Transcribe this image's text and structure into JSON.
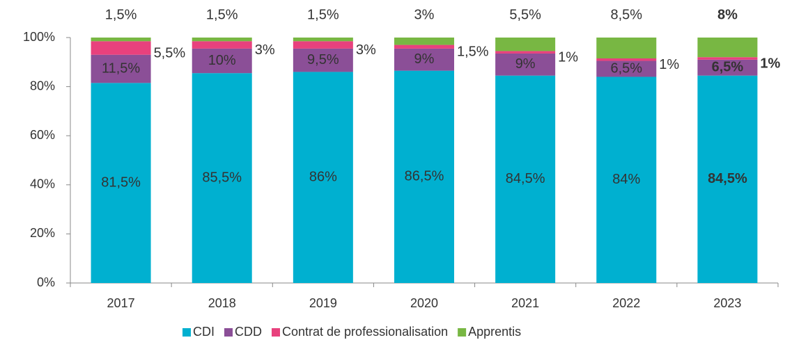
{
  "chart_data": {
    "type": "stacked_bar",
    "categories": [
      "2017",
      "2018",
      "2019",
      "2020",
      "2021",
      "2022",
      "2023"
    ],
    "series": [
      {
        "name": "CDI",
        "color": "#00b0d0",
        "label_position": "inside",
        "label_color": "#ffffff",
        "values": [
          81.5,
          85.5,
          86,
          86.5,
          84.5,
          84,
          84.5
        ],
        "value_labels": [
          "81,5%",
          "85,5%",
          "86%",
          "86,5%",
          "84,5%",
          "84%",
          "84,5%"
        ]
      },
      {
        "name": "CDD",
        "color": "#8b4f97",
        "label_position": "inside",
        "label_color": "#ffffff",
        "values": [
          11.5,
          10,
          9.5,
          9,
          9,
          6.5,
          6.5
        ],
        "value_labels": [
          "11,5%",
          "10%",
          "9,5%",
          "9%",
          "9%",
          "6,5%",
          "6,5%"
        ]
      },
      {
        "name": "Contrat de professionalisation",
        "color": "#e8417d",
        "label_position": "right",
        "label_color": "#e8417d",
        "values": [
          5.5,
          3,
          3,
          1.5,
          1,
          1,
          1
        ],
        "value_labels": [
          "5,5%",
          "3%",
          "3%",
          "1,5%",
          "1%",
          "1%",
          "1%"
        ]
      },
      {
        "name": "Apprentis",
        "color": "#78b743",
        "label_position": "top",
        "label_color": "#78b743",
        "values": [
          1.5,
          1.5,
          1.5,
          3,
          5.5,
          8.5,
          8
        ],
        "value_labels": [
          "1,5%",
          "1,5%",
          "1,5%",
          "3%",
          "5,5%",
          "8,5%",
          "8%"
        ]
      }
    ],
    "ylim": [
      0,
      100
    ],
    "yticks": [
      {
        "value": 0,
        "label": "0%"
      },
      {
        "value": 20,
        "label": "20%"
      },
      {
        "value": 40,
        "label": "40%"
      },
      {
        "value": 60,
        "label": "60%"
      },
      {
        "value": 80,
        "label": "80%"
      },
      {
        "value": 100,
        "label": "100%"
      }
    ],
    "bold_last": true,
    "legend": "bottom"
  }
}
